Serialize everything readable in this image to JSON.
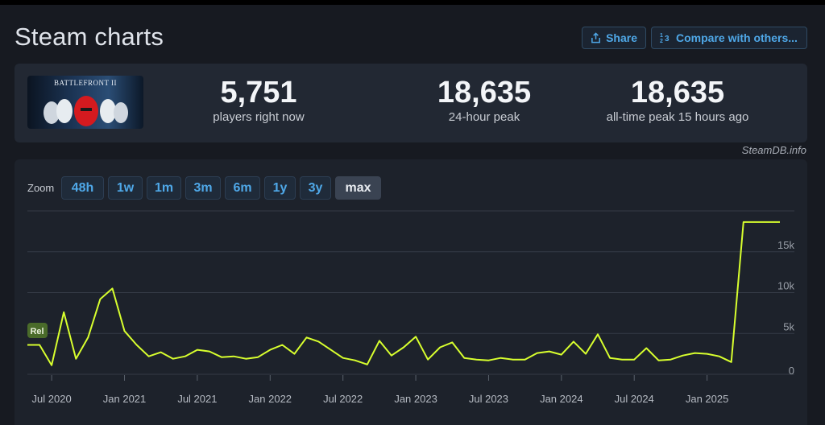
{
  "page": {
    "title": "Steam charts"
  },
  "actions": {
    "share_label": "Share",
    "compare_label": "Compare with others..."
  },
  "game": {
    "thumbnail_text": "BATTLEFRONT II"
  },
  "stats": [
    {
      "value": "5,751",
      "label": "players right now"
    },
    {
      "value": "18,635",
      "label": "24-hour peak"
    },
    {
      "value": "18,635",
      "label": "all-time peak 15 hours ago"
    }
  ],
  "credit": "SteamDB.info",
  "zoom": {
    "label": "Zoom",
    "options": [
      "48h",
      "1w",
      "1m",
      "3m",
      "6m",
      "1y",
      "3y",
      "max"
    ],
    "selected": "max"
  },
  "colors": {
    "line": "#d8ff2e",
    "accent": "#4fa8e8",
    "rel_badge": "#4a6b2a"
  },
  "chart_data": {
    "type": "line",
    "title": "",
    "xlabel": "",
    "ylabel": "",
    "ylim": [
      0,
      20000
    ],
    "x_range": [
      "2020-05",
      "2025-07"
    ],
    "y_ticks": [
      0,
      5000,
      10000,
      15000
    ],
    "y_tick_labels": [
      "0",
      "5k",
      "10k",
      "15k"
    ],
    "x_ticks": [
      "2020-07",
      "2021-01",
      "2021-07",
      "2022-01",
      "2022-07",
      "2023-01",
      "2023-07",
      "2024-01",
      "2024-07",
      "2025-01"
    ],
    "x_tick_labels": [
      "Jul 2020",
      "Jan 2021",
      "Jul 2021",
      "Jan 2022",
      "Jul 2022",
      "Jan 2023",
      "Jul 2023",
      "Jan 2024",
      "Jul 2024",
      "Jan 2025"
    ],
    "annotations": [
      {
        "label": "Rel",
        "x": "2020-05"
      }
    ],
    "series": [
      {
        "name": "Players",
        "x": [
          "2020-05",
          "2020-06",
          "2020-07",
          "2020-08",
          "2020-09",
          "2020-10",
          "2020-11",
          "2020-12",
          "2021-01",
          "2021-02",
          "2021-03",
          "2021-04",
          "2021-05",
          "2021-06",
          "2021-07",
          "2021-08",
          "2021-09",
          "2021-10",
          "2021-11",
          "2021-12",
          "2022-01",
          "2022-02",
          "2022-03",
          "2022-04",
          "2022-05",
          "2022-06",
          "2022-07",
          "2022-08",
          "2022-09",
          "2022-10",
          "2022-11",
          "2022-12",
          "2023-01",
          "2023-02",
          "2023-03",
          "2023-04",
          "2023-05",
          "2023-06",
          "2023-07",
          "2023-08",
          "2023-09",
          "2023-10",
          "2023-11",
          "2023-12",
          "2024-01",
          "2024-02",
          "2024-03",
          "2024-04",
          "2024-05",
          "2024-06",
          "2024-07",
          "2024-08",
          "2024-09",
          "2024-10",
          "2024-11",
          "2024-12",
          "2025-01",
          "2025-02",
          "2025-03",
          "2025-04",
          "2025-05",
          "2025-06",
          "2025-07"
        ],
        "values": [
          3600,
          3600,
          1100,
          7600,
          1900,
          4500,
          9200,
          10500,
          5300,
          3600,
          2200,
          2700,
          1900,
          2200,
          3000,
          2800,
          2100,
          2200,
          1900,
          2100,
          3000,
          3600,
          2500,
          4500,
          4000,
          3000,
          2000,
          1700,
          1200,
          4100,
          2300,
          3300,
          4600,
          1800,
          3300,
          3900,
          2000,
          1800,
          1700,
          2000,
          1800,
          1800,
          2600,
          2800,
          2400,
          4000,
          2500,
          4900,
          2000,
          1800,
          1800,
          3200,
          1700,
          1800,
          2300,
          2600,
          2500,
          2200,
          1500,
          18635,
          18635,
          18635,
          18635
        ]
      }
    ]
  }
}
